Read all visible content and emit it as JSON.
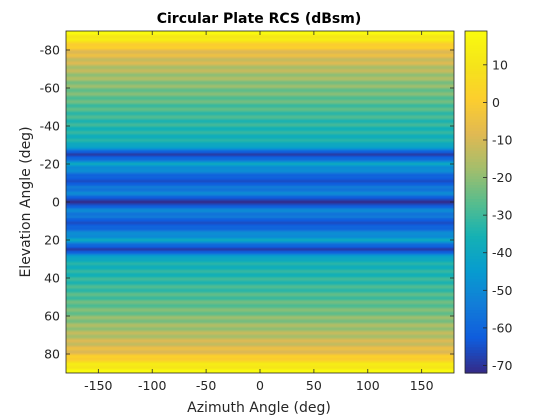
{
  "chart_data": {
    "type": "heatmap",
    "title": "Circular Plate RCS (dBsm)",
    "xlabel": "Azimuth Angle (deg)",
    "ylabel": "Elevation Angle (deg)",
    "xlim": [
      -180,
      180
    ],
    "ylim": [
      -90,
      90
    ],
    "y_direction": "reverse",
    "x_ticks": [
      -150,
      -100,
      -50,
      0,
      50,
      100,
      150
    ],
    "x_tick_labels": [
      "-150",
      "-100",
      "-50",
      "0",
      "50",
      "100",
      "150"
    ],
    "y_ticks": [
      -80,
      -60,
      -40,
      -20,
      0,
      20,
      40,
      60,
      80
    ],
    "y_tick_labels": [
      "-80",
      "-60",
      "-40",
      "-20",
      "0",
      "20",
      "40",
      "60",
      "80"
    ],
    "colorbar": {
      "colormap": "parula",
      "clim": [
        -72,
        19
      ],
      "ticks": [
        10,
        0,
        -10,
        -20,
        -30,
        -40,
        -50,
        -60,
        -70
      ],
      "tick_labels": [
        "10",
        "0",
        "-10",
        "-20",
        "-30",
        "-40",
        "-50",
        "-60",
        "-70"
      ]
    },
    "rcs_profile_note_free": true,
    "elevation_profile": [
      {
        "elevation": -90,
        "rcs": 19
      },
      {
        "elevation": -86,
        "rcs": 12
      },
      {
        "elevation": -80,
        "rcs": -5
      },
      {
        "elevation": -70,
        "rcs": -15
      },
      {
        "elevation": -60,
        "rcs": -22
      },
      {
        "elevation": -50,
        "rcs": -28
      },
      {
        "elevation": -40,
        "rcs": -33
      },
      {
        "elevation": -30,
        "rcs": -37
      },
      {
        "elevation": -25,
        "rcs": -70
      },
      {
        "elevation": -20,
        "rcs": -42
      },
      {
        "elevation": -11,
        "rcs": -66
      },
      {
        "elevation": -5,
        "rcs": -50
      },
      {
        "elevation": 0,
        "rcs": -72
      },
      {
        "elevation": 5,
        "rcs": -50
      },
      {
        "elevation": 11,
        "rcs": -66
      },
      {
        "elevation": 20,
        "rcs": -42
      },
      {
        "elevation": 25,
        "rcs": -70
      },
      {
        "elevation": 30,
        "rcs": -37
      },
      {
        "elevation": 40,
        "rcs": -33
      },
      {
        "elevation": 50,
        "rcs": -28
      },
      {
        "elevation": 60,
        "rcs": -22
      },
      {
        "elevation": 70,
        "rcs": -15
      },
      {
        "elevation": 80,
        "rcs": -5
      },
      {
        "elevation": 86,
        "rcs": 12
      },
      {
        "elevation": 90,
        "rcs": 19
      }
    ]
  }
}
